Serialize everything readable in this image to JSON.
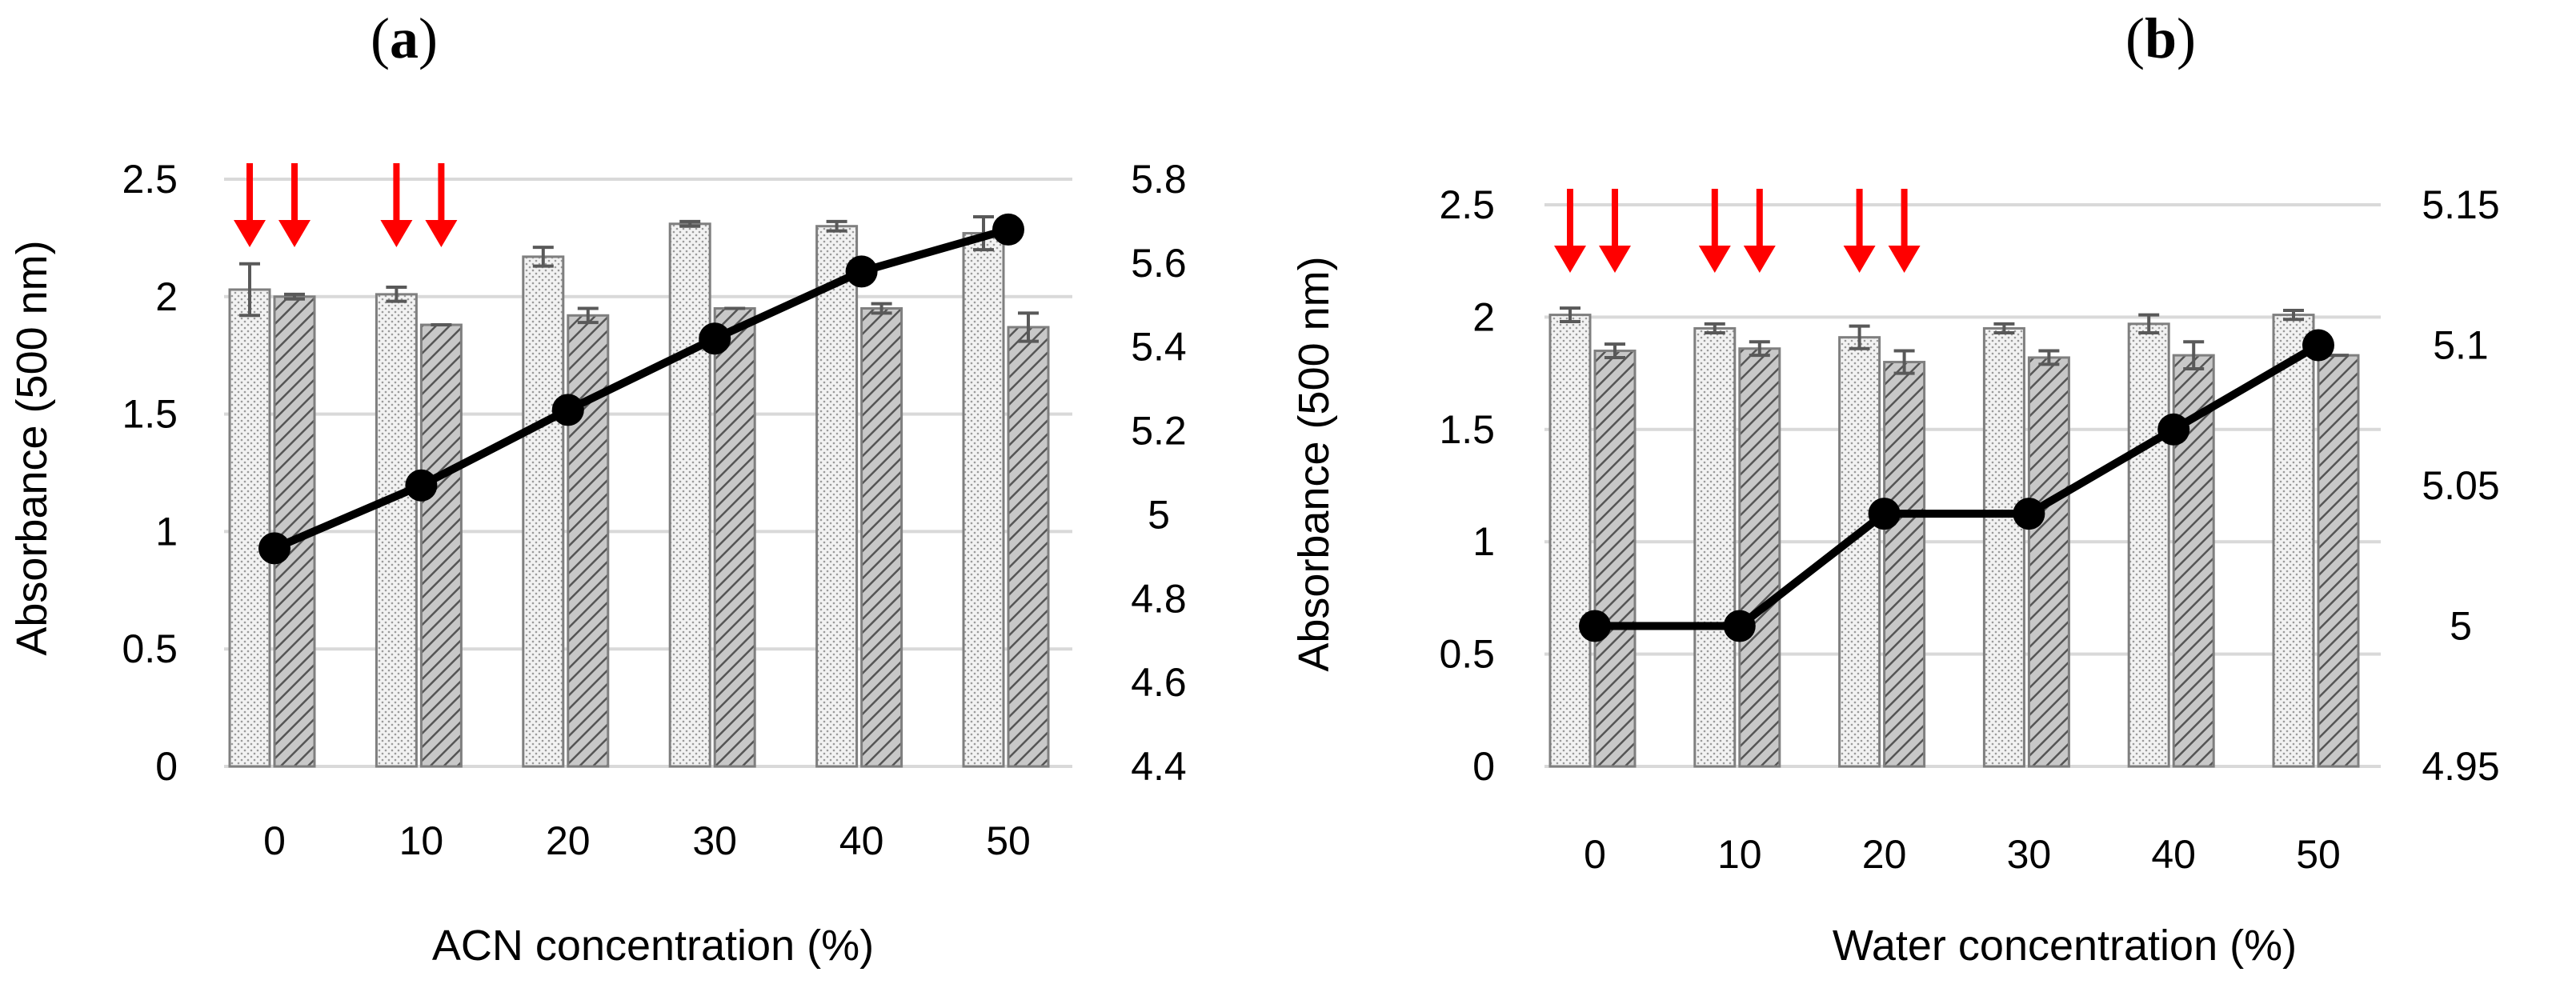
{
  "colors": {
    "arrow": "#ff0000",
    "line": "#000000",
    "grid": "#d9d9d9",
    "bar_edge": "#7f7f7f",
    "error_bar": "#595959"
  },
  "chart_data": [
    {
      "panel": "(a)",
      "panel_letter": "a",
      "type": "bar+line",
      "xlabel": "ACN concentration (%)",
      "ylabel": "Absorbance (500 nm)",
      "categories": [
        "0",
        "10",
        "20",
        "30",
        "40",
        "50"
      ],
      "ylim": [
        0,
        2.5
      ],
      "y_ticks": [
        "0",
        "0.5",
        "1",
        "1.5",
        "2",
        "2.5"
      ],
      "y2lim": [
        4.4,
        5.8
      ],
      "y2_ticks": [
        "4.4",
        "4.6",
        "4.8",
        "5",
        "5.2",
        "5.4",
        "5.6",
        "5.8"
      ],
      "series": [
        {
          "name": "bar-light",
          "kind": "bar",
          "pattern": "dots",
          "values": [
            2.03,
            2.01,
            2.17,
            2.31,
            2.3,
            2.27
          ],
          "errors": [
            0.11,
            0.03,
            0.04,
            0.01,
            0.02,
            0.07
          ]
        },
        {
          "name": "bar-dark",
          "kind": "bar",
          "pattern": "hatch",
          "values": [
            2.0,
            1.88,
            1.92,
            1.95,
            1.95,
            1.87
          ],
          "errors": [
            0.01,
            0.0,
            0.03,
            0.0,
            0.02,
            0.06
          ]
        },
        {
          "name": "line",
          "kind": "line",
          "axis": "secondary",
          "values": [
            4.92,
            5.07,
            5.25,
            5.42,
            5.58,
            5.68
          ]
        }
      ],
      "arrow_categories": [
        "0",
        "10"
      ]
    },
    {
      "panel": "(b)",
      "panel_letter": "b",
      "type": "bar+line",
      "xlabel": "Water concentration (%)",
      "ylabel": "Absorbance (500 nm)",
      "categories": [
        "0",
        "10",
        "20",
        "30",
        "40",
        "50"
      ],
      "ylim": [
        0,
        2.5
      ],
      "y_ticks": [
        "0",
        "0.5",
        "1",
        "1.5",
        "2",
        "2.5"
      ],
      "y2lim": [
        4.95,
        5.15
      ],
      "y2_ticks": [
        "4.95",
        "5",
        "5.05",
        "5.1",
        "5.15"
      ],
      "series": [
        {
          "name": "bar-light",
          "kind": "bar",
          "pattern": "dots",
          "values": [
            2.01,
            1.95,
            1.91,
            1.95,
            1.97,
            2.01
          ],
          "errors": [
            0.03,
            0.02,
            0.05,
            0.02,
            0.04,
            0.02
          ]
        },
        {
          "name": "bar-dark",
          "kind": "bar",
          "pattern": "hatch",
          "values": [
            1.85,
            1.86,
            1.8,
            1.82,
            1.83,
            1.83
          ],
          "errors": [
            0.03,
            0.03,
            0.05,
            0.03,
            0.06,
            0.0
          ]
        },
        {
          "name": "line",
          "kind": "line",
          "axis": "secondary",
          "values": [
            5.0,
            5.0,
            5.04,
            5.04,
            5.07,
            5.1
          ]
        }
      ],
      "arrow_categories": [
        "0",
        "10",
        "20"
      ]
    }
  ]
}
